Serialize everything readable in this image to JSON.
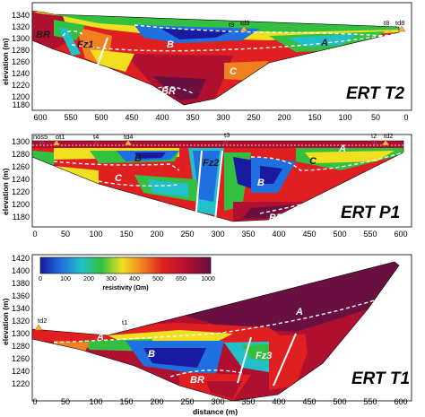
{
  "panels": [
    {
      "title": "ERT T2",
      "ylabel": "elevation (m)",
      "yticks": [
        "1340",
        "1320",
        "1300",
        "1280",
        "1260",
        "1240",
        "1220",
        "1200",
        "1180"
      ],
      "xticks": [
        "600",
        "550",
        "500",
        "450",
        "400",
        "350",
        "300",
        "250",
        "200",
        "150",
        "100",
        "50",
        "0"
      ],
      "stations": [
        "t9",
        "td9",
        "t8",
        "td8"
      ],
      "zones": [
        "BR",
        "Fz1",
        "B",
        "A",
        "C",
        "BR"
      ]
    },
    {
      "title": "ERT P1",
      "ylabel": "elevation (m)",
      "yticks": [
        "1300",
        "1280",
        "1260",
        "1240",
        "1220",
        "1200",
        "1180"
      ],
      "xticks": [
        "0",
        "50",
        "100",
        "150",
        "200",
        "250",
        "300",
        "350",
        "400",
        "450",
        "500",
        "550",
        "600"
      ],
      "stations": [
        "nos5",
        "ot1",
        "t4",
        "td4",
        "t3",
        "t2",
        "td2"
      ],
      "zones": [
        "B'",
        "Fz2",
        "A",
        "C",
        "B",
        "C",
        "BR'"
      ]
    },
    {
      "title": "ERT T1",
      "ylabel": "elevation (m)",
      "yticks": [
        "1420",
        "1400",
        "1380",
        "1360",
        "1340",
        "1320",
        "1300",
        "1280",
        "1260",
        "1240",
        "1220"
      ],
      "xticks": [
        "0",
        "50",
        "100",
        "150",
        "200",
        "250",
        "300",
        "350",
        "400",
        "450",
        "500",
        "550",
        "600"
      ],
      "xlabel": "distance (m)",
      "stations": [
        "td2",
        "t1"
      ],
      "zones": [
        "A",
        "A",
        "B",
        "Fz3",
        "BR"
      ]
    }
  ],
  "colorbar": {
    "ticks": [
      "0",
      "100",
      "200",
      "300",
      "400",
      "500",
      "650",
      "1000"
    ],
    "label": "resistivity (Ωm)",
    "colors": [
      "#1a1aa0",
      "#1e6fe0",
      "#22c0c8",
      "#33c040",
      "#f0e020",
      "#f08020",
      "#e02020",
      "#b01030",
      "#6a1040"
    ]
  }
}
